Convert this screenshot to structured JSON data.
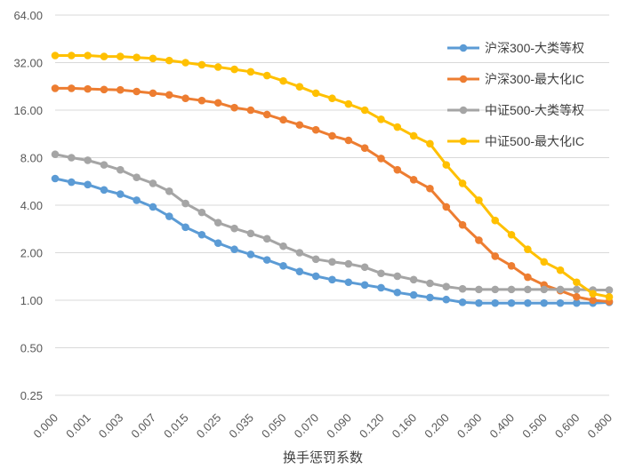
{
  "chart_data": {
    "type": "line",
    "title": "",
    "xlabel": "换手惩罚系数",
    "ylabel": "",
    "yscale": "log2",
    "ylim": [
      0.25,
      64
    ],
    "yticks": [
      "0.25",
      "0.50",
      "1.00",
      "2.00",
      "4.00",
      "8.00",
      "16.00",
      "32.00",
      "64.00"
    ],
    "ytick_values": [
      0.25,
      0.5,
      1,
      2,
      4,
      8,
      16,
      32,
      64
    ],
    "grid": "horizontal",
    "legend_position": "top-right",
    "x_tick_labels": [
      "0.000",
      "0.001",
      "0.003",
      "0.007",
      "0.015",
      "0.025",
      "0.035",
      "0.050",
      "0.070",
      "0.090",
      "0.120",
      "0.160",
      "0.200",
      "0.300",
      "0.400",
      "0.500",
      "0.600",
      "0.800"
    ],
    "x_point_count": 35,
    "series": [
      {
        "name": "沪深300-大类等权",
        "color": "#5B9BD5",
        "values": [
          5.9,
          5.6,
          5.4,
          5.0,
          4.7,
          4.3,
          3.9,
          3.4,
          2.9,
          2.6,
          2.3,
          2.1,
          1.95,
          1.8,
          1.65,
          1.52,
          1.42,
          1.35,
          1.3,
          1.25,
          1.2,
          1.12,
          1.08,
          1.04,
          1.01,
          0.97,
          0.96,
          0.96,
          0.96,
          0.96,
          0.96,
          0.96,
          0.96,
          0.96,
          0.97
        ]
      },
      {
        "name": "沪深300-最大化IC",
        "color": "#ED7D31",
        "values": [
          22.0,
          22.0,
          21.8,
          21.6,
          21.5,
          21.0,
          20.5,
          20.0,
          19.0,
          18.4,
          17.8,
          16.6,
          16.0,
          15.0,
          13.9,
          12.9,
          12.0,
          11.0,
          10.3,
          9.2,
          7.9,
          6.7,
          5.8,
          5.1,
          3.9,
          3.0,
          2.4,
          1.9,
          1.65,
          1.4,
          1.25,
          1.15,
          1.05,
          1.0,
          0.98
        ]
      },
      {
        "name": "中证500-大类等权",
        "color": "#A5A5A5",
        "values": [
          8.4,
          8.0,
          7.7,
          7.2,
          6.7,
          6.0,
          5.5,
          4.9,
          4.1,
          3.6,
          3.1,
          2.85,
          2.65,
          2.45,
          2.2,
          2.0,
          1.82,
          1.75,
          1.7,
          1.62,
          1.48,
          1.42,
          1.35,
          1.28,
          1.22,
          1.18,
          1.17,
          1.17,
          1.17,
          1.17,
          1.17,
          1.17,
          1.17,
          1.16,
          1.16
        ]
      },
      {
        "name": "中证500-最大化IC",
        "color": "#FFC000",
        "values": [
          35.5,
          35.5,
          35.5,
          35.0,
          35.0,
          34.5,
          34.0,
          33.0,
          32.0,
          31.0,
          30.0,
          29.0,
          28.0,
          26.5,
          24.5,
          22.5,
          20.5,
          19.0,
          17.5,
          16.0,
          14.0,
          12.5,
          11.0,
          9.8,
          7.2,
          5.5,
          4.3,
          3.2,
          2.6,
          2.1,
          1.75,
          1.55,
          1.3,
          1.1,
          1.05
        ]
      }
    ]
  }
}
